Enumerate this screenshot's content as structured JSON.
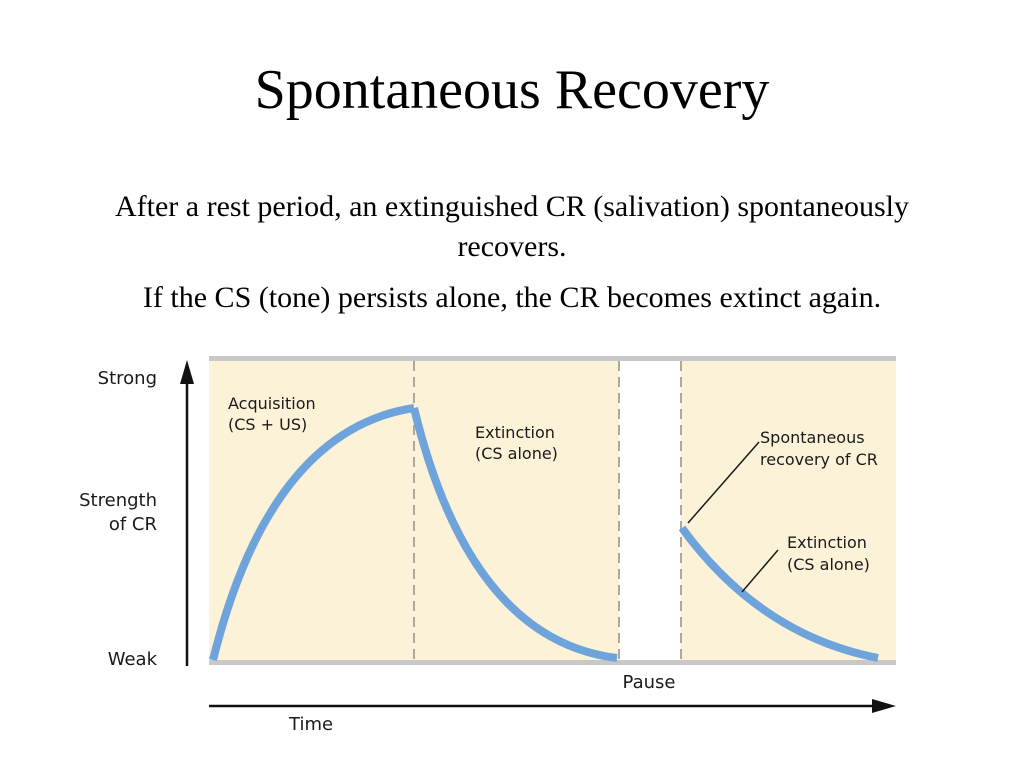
{
  "title": "Spontaneous Recovery",
  "paragraphs": [
    "After a rest period, an extinguished CR (salivation) spontaneously recovers.",
    "If the CS (tone) persists alone, the CR becomes extinct again."
  ],
  "diagram": {
    "y_axis": {
      "top_label": "Strong",
      "middle_label_lines": [
        "Strength",
        "of CR"
      ],
      "bottom_label": "Weak"
    },
    "x_axis": {
      "label": "Time",
      "pause_label": "Pause"
    },
    "phases": {
      "acquisition": [
        "Acquisition",
        "(CS + US)"
      ],
      "extinction_1": [
        "Extinction",
        "(CS alone)"
      ],
      "spontaneous_recovery": [
        "Spontaneous",
        "recovery of CR"
      ],
      "extinction_2": [
        "Extinction",
        "(CS alone)"
      ]
    },
    "colors": {
      "panel_background": "#fcf2d8",
      "curve": "#6fa3dc",
      "band": "#c8c8c8",
      "divider": "#b0a898"
    }
  }
}
